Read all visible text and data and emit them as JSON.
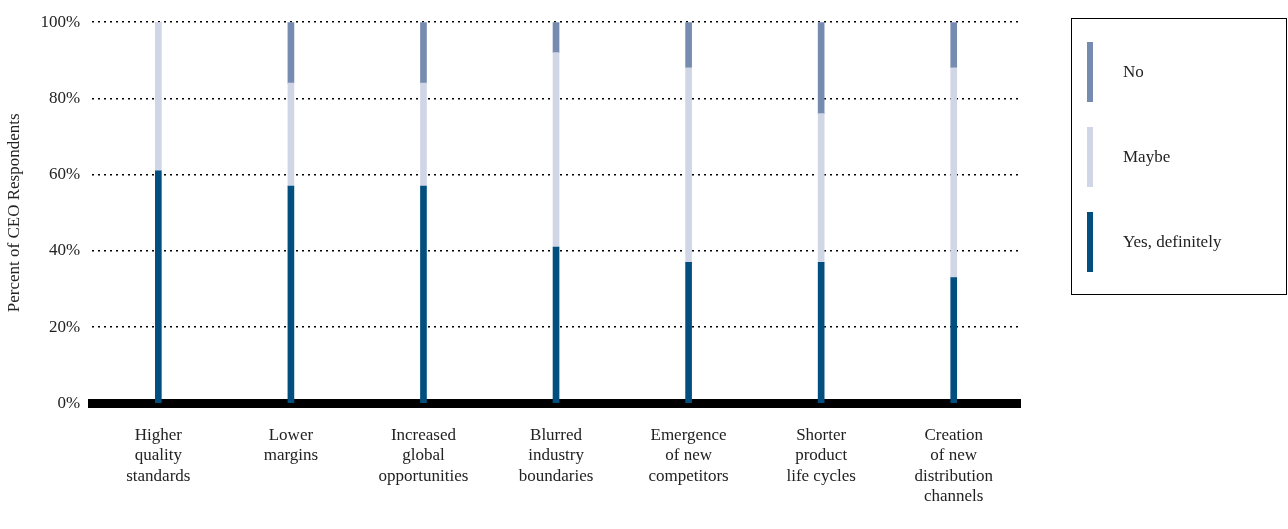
{
  "chart_data": {
    "type": "bar",
    "stacked": true,
    "ylabel": "Percent of CEO Respondents",
    "categories": [
      "Higher quality standards",
      "Lower margins",
      "Increased global opportunities",
      "Blurred industry boundaries",
      "Emergence of new competitors",
      "Shorter product life cycles",
      "Creation of new distribution channels"
    ],
    "series": [
      {
        "name": "Yes, definitely",
        "color": "#004f7f",
        "values": [
          61,
          57,
          57,
          41,
          37,
          37,
          33
        ]
      },
      {
        "name": "Maybe",
        "color": "#d0d6e6",
        "values": [
          39,
          27,
          27,
          51,
          51,
          39,
          55
        ]
      },
      {
        "name": "No",
        "color": "#758cb0",
        "values": [
          0,
          16,
          16,
          8,
          12,
          24,
          12
        ]
      }
    ],
    "ylim": [
      0,
      100
    ],
    "yticks": [
      {
        "value": 0,
        "label": "0%"
      },
      {
        "value": 20,
        "label": "20%"
      },
      {
        "value": 40,
        "label": "40%"
      },
      {
        "value": 60,
        "label": "60%"
      },
      {
        "value": 80,
        "label": "80%"
      },
      {
        "value": 100,
        "label": "100%"
      }
    ],
    "grid": "y",
    "legend": "right"
  }
}
